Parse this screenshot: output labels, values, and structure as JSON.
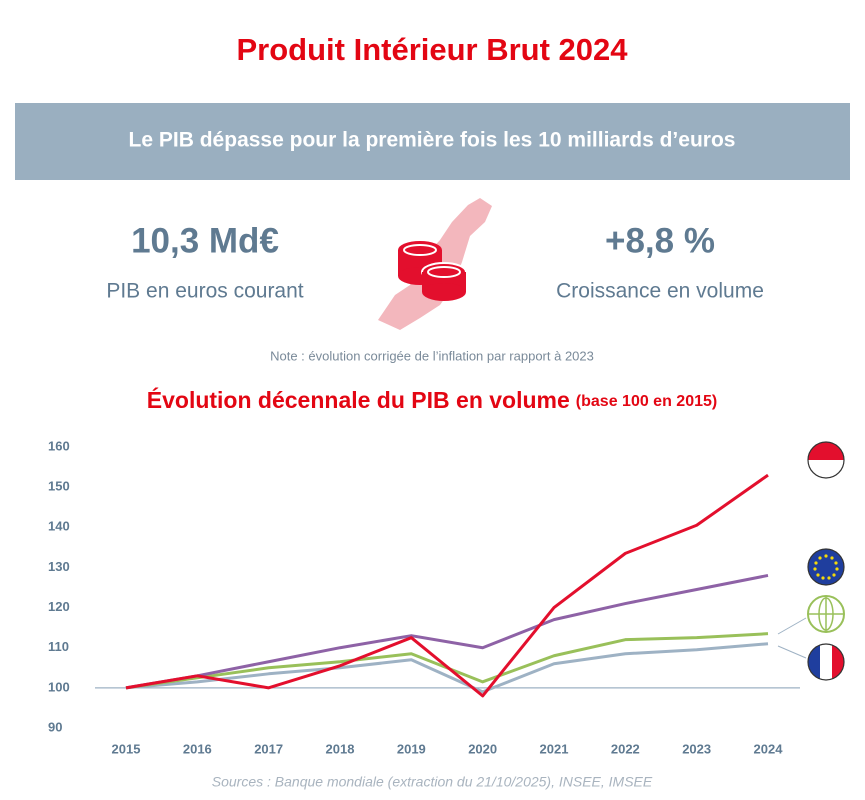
{
  "header": {
    "title": "Produit Intérieur Brut 2024",
    "banner": "Le PIB dépasse pour la première fois les 10 milliards d’euros"
  },
  "kpis": [
    {
      "value": "10,3 Md€",
      "label": "PIB en euros courant"
    },
    {
      "value": "+8,8 %",
      "label": "Croissance en volume"
    }
  ],
  "note": "Note : évolution corrigée de l’inflation par rapport à 2023",
  "chart_data": {
    "type": "line",
    "title": "Évolution décennale du PIB en volume",
    "subtitle": "(base 100 en 2015)",
    "categories": [
      "2015",
      "2016",
      "2017",
      "2018",
      "2019",
      "2020",
      "2021",
      "2022",
      "2023",
      "2024"
    ],
    "series": [
      {
        "color": "#e30f2d",
        "values": [
          100,
          103,
          100,
          105.5,
          112.5,
          98,
          120,
          133.5,
          140.5,
          153
        ]
      },
      {
        "color": "#8e62a6",
        "values": [
          100,
          103,
          106.5,
          110,
          113,
          110,
          117,
          121,
          124.5,
          128
        ]
      },
      {
        "color": "#99c05a",
        "values": [
          100,
          102.5,
          105,
          106.5,
          108.5,
          101.5,
          108,
          112,
          112.5,
          113.5
        ]
      },
      {
        "color": "#9eb2c4",
        "values": [
          100,
          101.5,
          103.5,
          105,
          107,
          99,
          106,
          108.5,
          109.5,
          111
        ]
      }
    ],
    "ylim": [
      90,
      160
    ],
    "yticks": [
      90,
      100,
      110,
      120,
      130,
      140,
      150,
      160
    ],
    "reference_line": 100,
    "source": "Sources : Banque mondiale (extraction du 21/10/2025), INSEE, IMSEE"
  }
}
